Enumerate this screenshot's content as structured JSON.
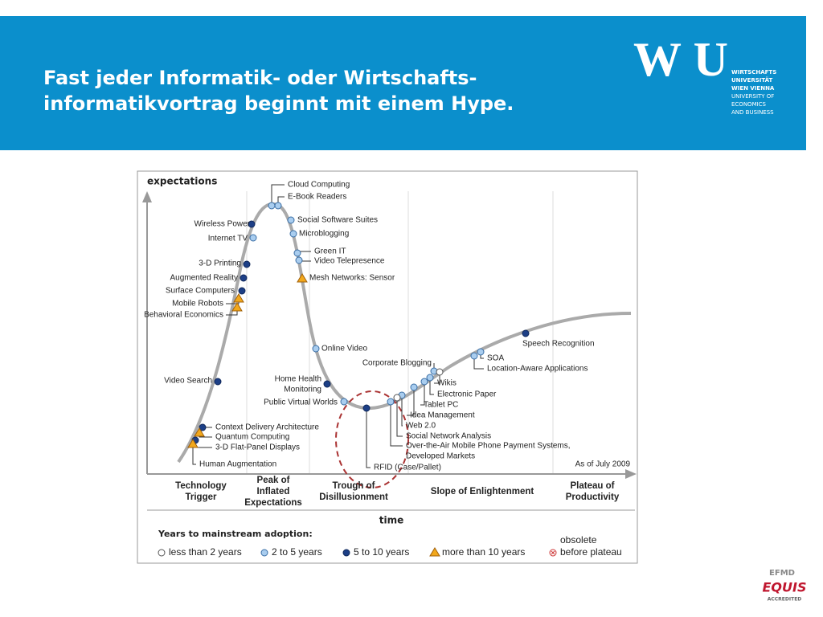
{
  "header": {
    "title": [
      "Fast jeder Informatik- oder Wirtschafts-",
      "informatikvortrag beginnt mit einem Hype."
    ],
    "logo": {
      "mark": "WU",
      "lines": [
        "WIRTSCHAFTS",
        "UNIVERSITÄT",
        "WIEN VIENNA",
        "UNIVERSITY OF",
        "ECONOMICS",
        "AND BUSINESS"
      ]
    }
  },
  "diagram": {
    "y_label": "expectations",
    "x_label": "time",
    "date": "As of July 2009",
    "phases": [
      [
        "Technology",
        "Trigger"
      ],
      [
        "Peak of",
        "Inflated",
        "Expectations"
      ],
      [
        "Trough of",
        "Disillusionment"
      ],
      [
        "Slope of Enlightenment"
      ],
      [
        "Plateau of",
        "Productivity"
      ]
    ],
    "legend": {
      "title": "Years to mainstream adoption:",
      "items": [
        [
          "less than 2 years"
        ],
        [
          "2 to 5 years"
        ],
        [
          "5 to 10 years"
        ],
        [
          "more than 10 years"
        ],
        [
          "obsolete",
          "before plateau"
        ]
      ]
    },
    "items": [
      {
        "label": [
          "Cloud Computing"
        ],
        "adoption": 1
      },
      {
        "label": [
          "E-Book Readers"
        ],
        "adoption": 1
      },
      {
        "label": [
          "Wireless Power"
        ],
        "adoption": 2
      },
      {
        "label": [
          "Internet TV"
        ],
        "adoption": 1
      },
      {
        "label": [
          "Social Software Suites"
        ],
        "adoption": 1
      },
      {
        "label": [
          "Microblogging"
        ],
        "adoption": 1
      },
      {
        "label": [
          "Green IT"
        ],
        "adoption": 1
      },
      {
        "label": [
          "Video Telepresence"
        ],
        "adoption": 1
      },
      {
        "label": [
          "3-D Printing"
        ],
        "adoption": 2
      },
      {
        "label": [
          "Mesh Networks: Sensor"
        ],
        "adoption": 3
      },
      {
        "label": [
          "Augmented Reality"
        ],
        "adoption": 2
      },
      {
        "label": [
          "Surface Computers"
        ],
        "adoption": 2
      },
      {
        "label": [
          "Mobile Robots"
        ],
        "adoption": 3
      },
      {
        "label": [
          "Behavioral Economics"
        ],
        "adoption": 3
      },
      {
        "label": [
          "Online Video"
        ],
        "adoption": 1
      },
      {
        "label": [
          "Video Search"
        ],
        "adoption": 2
      },
      {
        "label": [
          "Home Health",
          "Monitoring"
        ],
        "adoption": 2
      },
      {
        "label": [
          "Public Virtual Worlds"
        ],
        "adoption": 1
      },
      {
        "label": [
          "Corporate Blogging"
        ],
        "adoption": 1
      },
      {
        "label": [
          "SOA"
        ],
        "adoption": 1
      },
      {
        "label": [
          "Location-Aware Applications"
        ],
        "adoption": 1
      },
      {
        "label": [
          "Speech Recognition"
        ],
        "adoption": 2
      },
      {
        "label": [
          "Wikis"
        ],
        "adoption": 0
      },
      {
        "label": [
          "Electronic Paper"
        ],
        "adoption": 1
      },
      {
        "label": [
          "Tablet PC"
        ],
        "adoption": 1
      },
      {
        "label": [
          "Idea Management"
        ],
        "adoption": 1
      },
      {
        "label": [
          "Web 2.0"
        ],
        "adoption": 1
      },
      {
        "label": [
          "Social Network Analysis"
        ],
        "adoption": 0
      },
      {
        "label": [
          "Over-the-Air Mobile Phone Payment Systems,",
          "Developed Markets"
        ],
        "adoption": 1
      },
      {
        "label": [
          "RFID (Case/Pallet)"
        ],
        "adoption": 2
      },
      {
        "label": [
          "Context Delivery Architecture"
        ],
        "adoption": 2
      },
      {
        "label": [
          "Quantum Computing"
        ],
        "adoption": 3
      },
      {
        "label": [
          "3-D Flat-Panel Displays"
        ],
        "adoption": 2
      },
      {
        "label": [
          "Human Augmentation"
        ],
        "adoption": 3
      }
    ]
  },
  "footer": {
    "accreditor": "EFMD",
    "brand": "EQUIS",
    "status": "ACCREDITED"
  }
}
